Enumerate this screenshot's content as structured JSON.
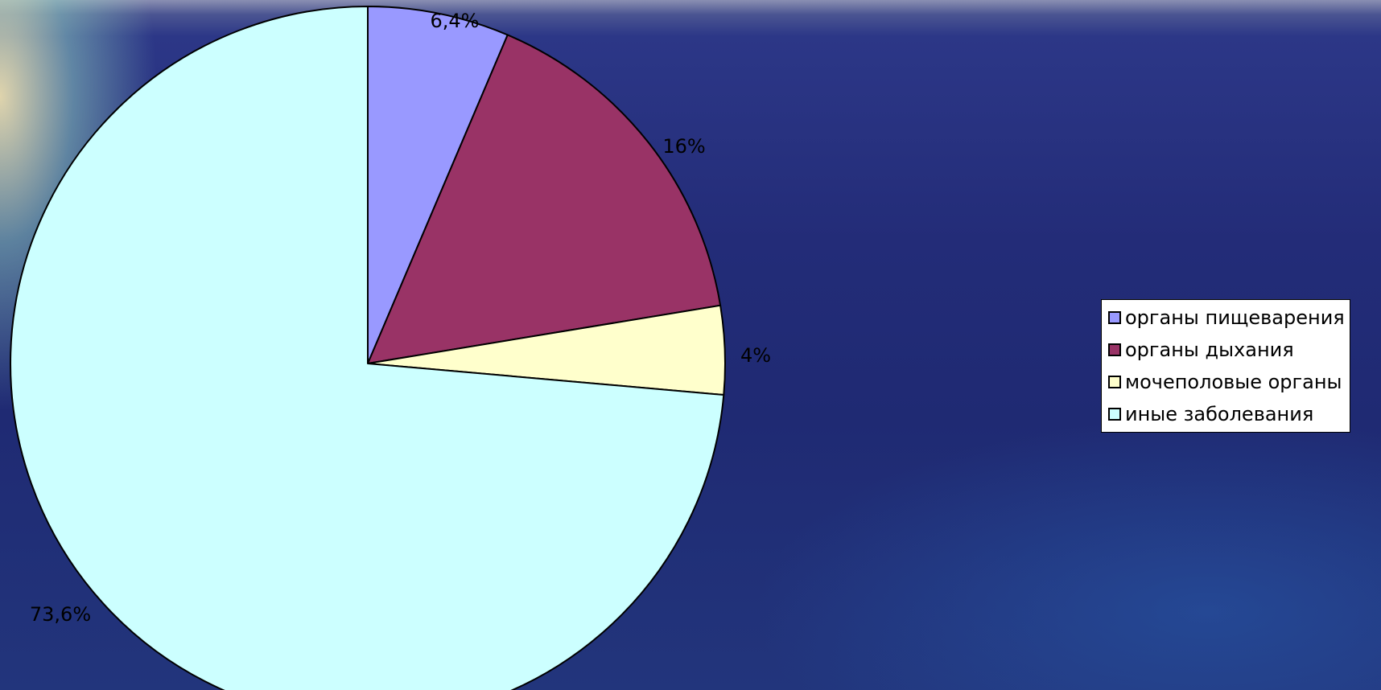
{
  "chart_data": {
    "type": "pie",
    "start_angle_deg": 0,
    "direction": "clockwise",
    "slices": [
      {
        "label": "органы пищеварения",
        "value": 6.4,
        "value_label": "6,4%",
        "color": "#9999ff"
      },
      {
        "label": "органы дыхания",
        "value": 16,
        "value_label": "16%",
        "color": "#993366"
      },
      {
        "label": "мочеполовые органы",
        "value": 4,
        "value_label": "4%",
        "color": "#ffffcc"
      },
      {
        "label": "иные заболевания",
        "value": 73.6,
        "value_label": "73,6%",
        "color": "#ccffff"
      }
    ],
    "legend_position": "right"
  }
}
